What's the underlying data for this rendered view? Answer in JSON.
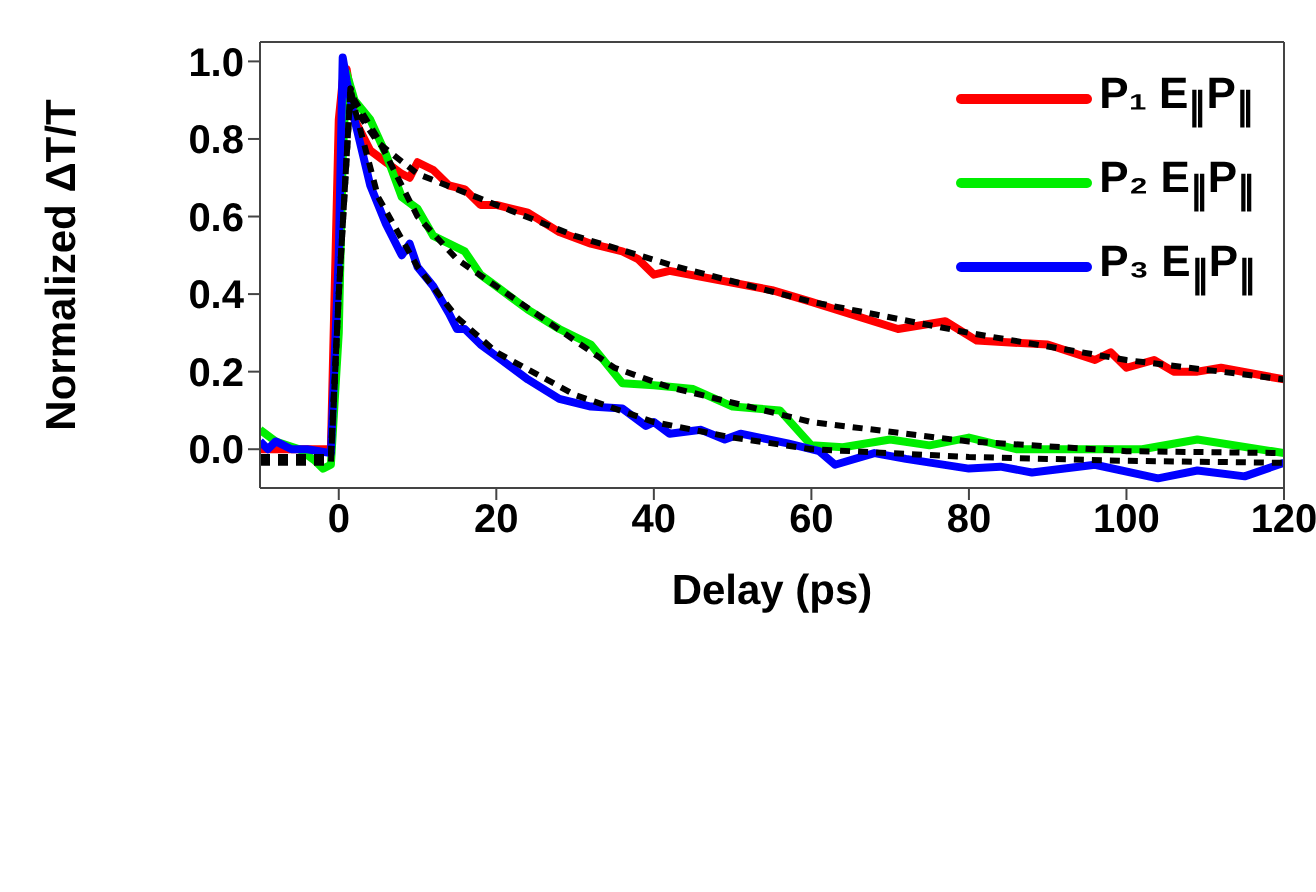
{
  "chart_data": {
    "type": "line",
    "xlabel": "Delay (ps)",
    "ylabel": "Normalized ΔT/T",
    "xlim": [
      -10,
      120
    ],
    "ylim": [
      -0.1,
      1.05
    ],
    "xticks": [
      0,
      20,
      40,
      60,
      80,
      100,
      120
    ],
    "yticks": [
      {
        "value": 0,
        "label": "0.0"
      },
      0.2,
      0.4,
      0.6,
      0.8,
      {
        "value": 1,
        "label": "1.0"
      }
    ],
    "legend": "top right",
    "marker": "none",
    "series": [
      {
        "name": "P₁ E$_{∥}$P$_{∥}$",
        "color": "#ff0000",
        "line_style": "solid",
        "x": [
          -10,
          -5,
          -2,
          -1,
          0,
          0.5,
          1,
          2,
          4,
          6,
          8,
          9,
          10,
          12,
          14,
          16,
          18,
          20,
          24,
          28,
          32,
          36,
          38,
          40,
          42,
          55,
          60,
          71,
          77,
          81,
          90,
          96,
          98,
          100,
          103.5,
          106,
          109,
          112,
          120
        ],
        "values": [
          0,
          0,
          0,
          0,
          0.85,
          0.95,
          0.98,
          0.85,
          0.77,
          0.74,
          0.71,
          0.7,
          0.74,
          0.72,
          0.68,
          0.67,
          0.63,
          0.63,
          0.61,
          0.56,
          0.53,
          0.51,
          0.49,
          0.45,
          0.46,
          0.41,
          0.38,
          0.31,
          0.33,
          0.28,
          0.27,
          0.23,
          0.25,
          0.21,
          0.23,
          0.2,
          0.2,
          0.21,
          0.18
        ]
      },
      {
        "name": "P₂ E$_{∥}$P$_{∥}$",
        "color": "#00ee00",
        "line_style": "solid",
        "x": [
          -10,
          -8,
          -5,
          -3,
          -2,
          -1,
          0,
          0.5,
          1,
          2,
          4,
          6,
          8,
          10,
          12,
          14,
          16,
          18,
          20,
          24,
          28,
          32,
          36,
          40,
          45,
          50,
          56,
          60,
          64,
          70,
          75,
          80,
          86,
          102,
          109,
          120
        ],
        "values": [
          0.05,
          0.02,
          0,
          -0.03,
          -0.05,
          -0.04,
          0.3,
          0.75,
          0.97,
          0.9,
          0.85,
          0.76,
          0.65,
          0.62,
          0.55,
          0.53,
          0.51,
          0.45,
          0.42,
          0.36,
          0.31,
          0.27,
          0.17,
          0.165,
          0.155,
          0.11,
          0.1,
          0.01,
          0.005,
          0.025,
          0.01,
          0.03,
          0,
          0,
          0.025,
          -0.01
        ]
      },
      {
        "name": "P₃ E$_{∥}$P$_{∥}$",
        "color": "#0000ff",
        "line_style": "solid",
        "x": [
          -10,
          -9,
          -8,
          -6,
          -4,
          -1,
          0,
          0.5,
          1,
          2,
          4,
          6,
          8,
          9,
          10,
          12,
          14,
          15,
          16,
          18,
          20,
          24,
          28,
          32,
          36,
          39,
          40,
          42,
          46,
          49,
          51,
          57,
          61,
          63,
          68,
          72,
          80,
          84,
          88,
          96,
          104,
          109,
          115,
          120
        ],
        "values": [
          0.02,
          0,
          0.02,
          0,
          0,
          -0.01,
          0.5,
          1.01,
          0.95,
          0.85,
          0.68,
          0.58,
          0.5,
          0.53,
          0.47,
          0.42,
          0.35,
          0.31,
          0.31,
          0.27,
          0.24,
          0.18,
          0.13,
          0.11,
          0.105,
          0.06,
          0.07,
          0.04,
          0.05,
          0.025,
          0.04,
          0.015,
          -0.005,
          -0.04,
          -0.01,
          -0.025,
          -0.05,
          -0.045,
          -0.06,
          -0.04,
          -0.075,
          -0.055,
          -0.07,
          -0.035
        ]
      },
      {
        "color": "#000000",
        "line_style": "dashed",
        "x": [
          -10,
          -1,
          0,
          1.5,
          2,
          5,
          10,
          20,
          30,
          43,
          60,
          80,
          100,
          120
        ],
        "values": [
          -0.02,
          -0.02,
          0.4,
          0.93,
          0.88,
          0.79,
          0.71,
          0.63,
          0.55,
          0.47,
          0.38,
          0.3,
          0.23,
          0.18
        ]
      },
      {
        "color": "#000000",
        "line_style": "dashed",
        "x": [
          -10,
          -1,
          0,
          1.5,
          2,
          5,
          10,
          15,
          20,
          30,
          35,
          42,
          60,
          80,
          100,
          120
        ],
        "values": [
          -0.02,
          -0.02,
          0.4,
          0.93,
          0.9,
          0.8,
          0.6,
          0.49,
          0.42,
          0.28,
          0.21,
          0.16,
          0.07,
          0.02,
          -0.005,
          -0.01
        ]
      },
      {
        "color": "#000000",
        "line_style": "dashed",
        "x": [
          -10,
          -1,
          0,
          1.5,
          2,
          5,
          10,
          15,
          20,
          30,
          40,
          50,
          60,
          80,
          100,
          120
        ],
        "values": [
          -0.035,
          -0.035,
          0.4,
          0.93,
          0.88,
          0.65,
          0.47,
          0.34,
          0.25,
          0.14,
          0.07,
          0.03,
          0,
          -0.02,
          -0.03,
          -0.035
        ]
      }
    ]
  }
}
